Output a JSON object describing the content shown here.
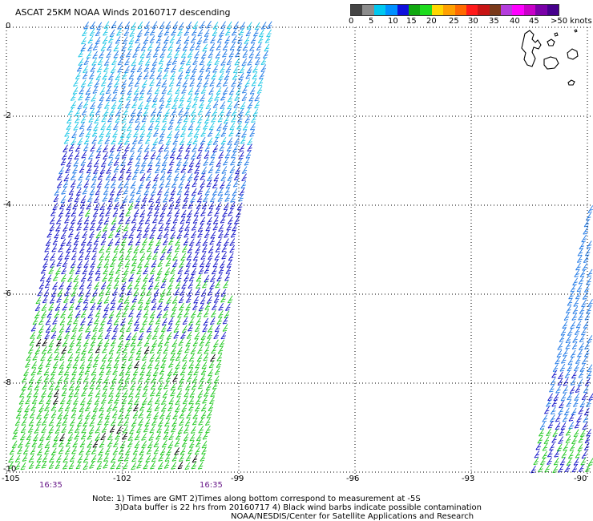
{
  "title": "ASCAT 25KM NOAA Winds 20160717 descending",
  "legend": {
    "colors": [
      "#444444",
      "#8c8c8c",
      "#00c8f0",
      "#0090ff",
      "#1010dd",
      "#10a810",
      "#1edc1e",
      "#ffd700",
      "#ffa000",
      "#ff6a00",
      "#ff1a1a",
      "#c81414",
      "#7a3a1a",
      "#b43cdc",
      "#ff00ff",
      "#c800c8",
      "#7a00a8",
      "#46008c"
    ],
    "labels": [
      "0",
      "5",
      "10",
      "15",
      "20",
      "25",
      "30",
      "35",
      "40",
      "45",
      ">50 knots"
    ]
  },
  "lat_labels": [
    "0",
    "-2",
    "-4",
    "-6",
    "-8",
    "-10"
  ],
  "lon_labels": [
    "-105",
    "-102",
    "-99",
    "-96",
    "-93",
    "-90"
  ],
  "time_labels": [
    "16:35",
    "16:35"
  ],
  "notes": [
    "Note: 1) Times are GMT 2)Times along bottom correspond to measurement at -5S",
    "3)Data buffer is 22 hrs from 20160717 4) Black wind barbs indicate possible contamination",
    "NOAA/NESDIS/Center for Satellite Applications and Research"
  ],
  "wind_colors": {
    "light_blue": "#19c6e6",
    "mid_blue": "#1e78e6",
    "dark_blue": "#1414c8",
    "green": "#1ec81e",
    "black": "#000000"
  },
  "map": {
    "lat_range": [
      -10,
      0
    ],
    "lon_range": [
      -105,
      -90
    ],
    "grid": "dotted",
    "barb_units": "knots"
  }
}
